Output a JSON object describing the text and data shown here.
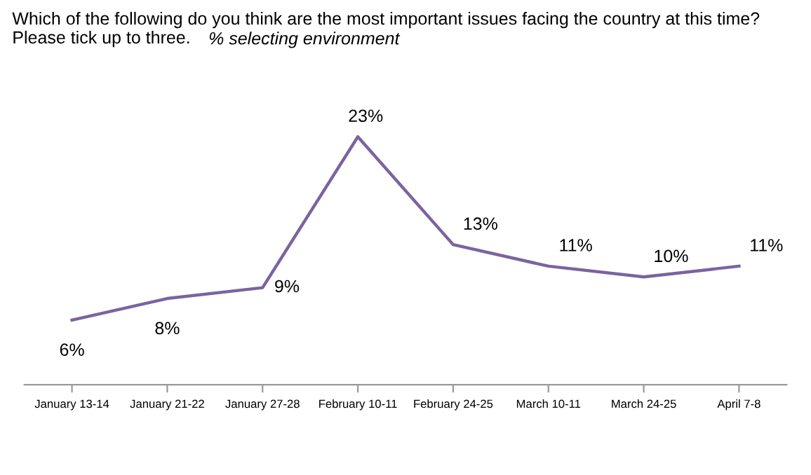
{
  "chart_data": {
    "type": "line",
    "title": "Which of the following do you think are the most important issues facing the country at this time? Please tick up to three.",
    "subtitle": "% selecting environment",
    "categories": [
      "January 13-14",
      "January 21-22",
      "January 27-28",
      "February 10-11",
      "February 24-25",
      "March 10-11",
      "March 24-25",
      "April 7-8"
    ],
    "series": [
      {
        "color": "#7b63a0",
        "values": [
          6,
          8,
          9,
          23,
          13,
          11,
          10,
          11
        ],
        "value_labels": [
          "6%",
          "8%",
          "9%",
          "23%",
          "13%",
          "11%",
          "10%",
          "11%"
        ]
      }
    ],
    "grid": false,
    "legend": false,
    "marker": "none",
    "line_style": "solid",
    "tick_labels": "x"
  }
}
